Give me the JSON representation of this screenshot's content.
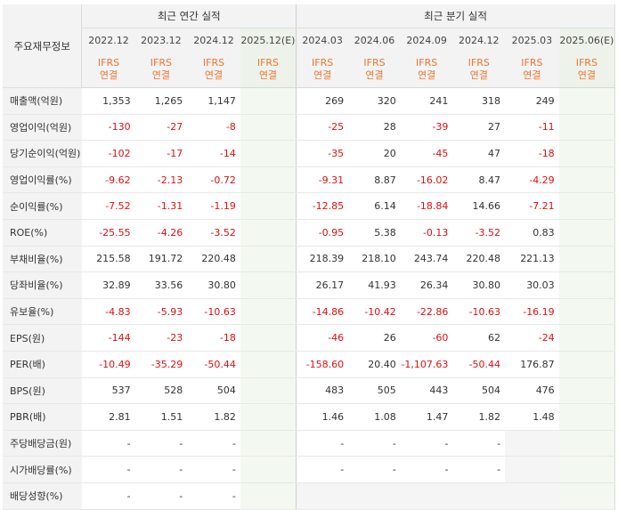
{
  "header": {
    "row_label": "주요재무정보",
    "annual_title": "최근 연간 실적",
    "quarter_title": "최근 분기 실적",
    "annual_periods": [
      "2022.12",
      "2023.12",
      "2024.12",
      "2025.12(E)"
    ],
    "quarter_periods": [
      "2024.03",
      "2024.06",
      "2024.09",
      "2024.12",
      "2025.03",
      "2025.06(E)"
    ],
    "basis_top": "IFRS",
    "basis_bottom": "연결"
  },
  "rows": [
    {
      "label": "매출액(억원)",
      "values": [
        "1,353",
        "1,265",
        "1,147",
        "",
        "269",
        "320",
        "241",
        "318",
        "249",
        ""
      ]
    },
    {
      "label": "영업이익(억원)",
      "values": [
        "-130",
        "-27",
        "-8",
        "",
        "-25",
        "28",
        "-39",
        "27",
        "-11",
        ""
      ]
    },
    {
      "label": "당기순이익(억원)",
      "values": [
        "-102",
        "-17",
        "-14",
        "",
        "-35",
        "20",
        "-45",
        "47",
        "-18",
        ""
      ]
    },
    {
      "label": "영업이익률(%)",
      "values": [
        "-9.62",
        "-2.13",
        "-0.72",
        "",
        "-9.31",
        "8.87",
        "-16.02",
        "8.47",
        "-4.29",
        ""
      ]
    },
    {
      "label": "순이익률(%)",
      "values": [
        "-7.52",
        "-1.31",
        "-1.19",
        "",
        "-12.85",
        "6.14",
        "-18.84",
        "14.66",
        "-7.21",
        ""
      ]
    },
    {
      "label": "ROE(%)",
      "values": [
        "-25.55",
        "-4.26",
        "-3.52",
        "",
        "-0.95",
        "5.38",
        "-0.13",
        "-3.52",
        "0.83",
        ""
      ]
    },
    {
      "label": "부채비율(%)",
      "values": [
        "215.58",
        "191.72",
        "220.48",
        "",
        "218.39",
        "218.10",
        "243.74",
        "220.48",
        "221.13",
        ""
      ]
    },
    {
      "label": "당좌비율(%)",
      "values": [
        "32.89",
        "33.56",
        "30.80",
        "",
        "26.17",
        "41.93",
        "26.34",
        "30.80",
        "30.03",
        ""
      ]
    },
    {
      "label": "유보율(%)",
      "values": [
        "-4.83",
        "-5.93",
        "-10.63",
        "",
        "-14.86",
        "-10.42",
        "-22.86",
        "-10.63",
        "-16.19",
        ""
      ]
    },
    {
      "label": "EPS(원)",
      "values": [
        "-144",
        "-23",
        "-18",
        "",
        "-46",
        "26",
        "-60",
        "62",
        "-24",
        ""
      ]
    },
    {
      "label": "PER(배)",
      "values": [
        "-10.49",
        "-35.29",
        "-50.44",
        "",
        "-158.60",
        "20.40",
        "-1,107.63",
        "-50.44",
        "176.87",
        ""
      ]
    },
    {
      "label": "BPS(원)",
      "values": [
        "537",
        "528",
        "504",
        "",
        "483",
        "505",
        "443",
        "504",
        "476",
        ""
      ]
    },
    {
      "label": "PBR(배)",
      "values": [
        "2.81",
        "1.51",
        "1.82",
        "",
        "1.46",
        "1.08",
        "1.47",
        "1.82",
        "1.48",
        ""
      ]
    },
    {
      "label": "주당배당금(원)",
      "values": [
        "-",
        "-",
        "-",
        "",
        "-",
        "-",
        "-",
        "-",
        "",
        ""
      ]
    },
    {
      "label": "시가배당률(%)",
      "values": [
        "-",
        "-",
        "-",
        "",
        "-",
        "-",
        "-",
        "-",
        "",
        ""
      ]
    },
    {
      "label": "배당성향(%)",
      "values": [
        "-",
        "-",
        "-",
        "",
        "",
        "",
        "",
        "",
        "",
        ""
      ]
    }
  ],
  "colors": {
    "negative": "#e01010",
    "basis": "#f07430",
    "header_bg": "#f3f3f3",
    "estimate_bg": "#f3f8f1"
  }
}
